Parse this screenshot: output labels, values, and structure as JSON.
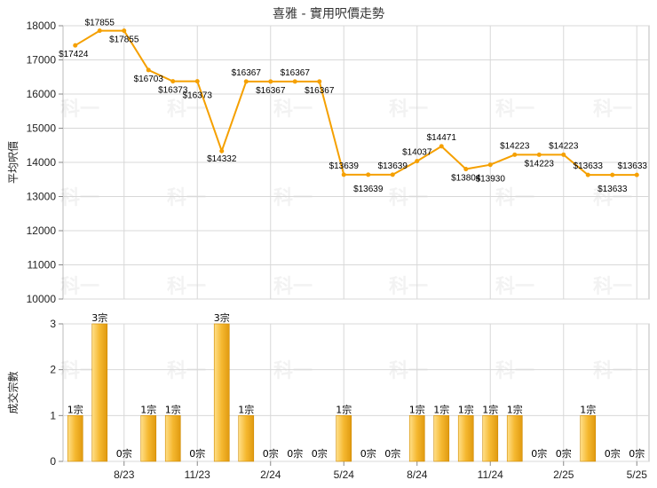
{
  "colors": {
    "line": "#F5A000",
    "bar_light": "#FFE08A",
    "bar_dark": "#E09A10",
    "grid": "#D8D8D8",
    "axis": "#888888"
  },
  "watermark": "科一",
  "chart_data": [
    {
      "type": "line",
      "title": "喜雅 - 實用呎價走勢",
      "ylabel": "平均呎價",
      "ylim": [
        10000,
        18000
      ],
      "yticks": [
        "10000",
        "11000",
        "12000",
        "13000",
        "14000",
        "15000",
        "16000",
        "17000",
        "18000"
      ],
      "xticks": [
        "8/23",
        "11/23",
        "2/24",
        "5/24",
        "8/24",
        "11/24",
        "2/25",
        "5/25"
      ],
      "grid": true,
      "x": [
        "6/23",
        "7/23",
        "8/23",
        "9/23",
        "10/23",
        "11/23",
        "12/23",
        "1/24",
        "2/24",
        "3/24",
        "4/24",
        "5/24",
        "6/24",
        "7/24",
        "8/24",
        "9/24",
        "10/24",
        "11/24",
        "12/24",
        "1/25",
        "2/25",
        "3/25",
        "4/25",
        "5/25"
      ],
      "values": [
        17424,
        17855,
        17855,
        16703,
        16373,
        16373,
        14332,
        16367,
        16367,
        16367,
        16367,
        13639,
        13639,
        13639,
        14037,
        14471,
        13804,
        13930,
        14223,
        14223,
        14223,
        13633,
        13633,
        13633
      ],
      "labels": [
        "$17424",
        "$17855",
        "$17855",
        "$16703",
        "$16373",
        "$16373",
        "$14332",
        "$16367",
        "$16367",
        "$16367",
        "$16367",
        "$13639",
        "$13639",
        "$13639",
        "$14037",
        "$14471",
        "$13804",
        "$13930",
        "$14223",
        "$14223",
        "$14223",
        "$13633",
        "$13633",
        "$13633"
      ]
    },
    {
      "type": "bar",
      "ylabel": "成交宗數",
      "ylim": [
        0,
        3
      ],
      "yticks": [
        "0",
        "1",
        "2",
        "3"
      ],
      "xticks": [
        "8/23",
        "11/23",
        "2/24",
        "5/24",
        "8/24",
        "11/24",
        "2/25",
        "5/25"
      ],
      "grid": true,
      "x": [
        "6/23",
        "7/23",
        "8/23",
        "9/23",
        "10/23",
        "11/23",
        "12/23",
        "1/24",
        "2/24",
        "3/24",
        "4/24",
        "5/24",
        "6/24",
        "7/24",
        "8/24",
        "9/24",
        "10/24",
        "11/24",
        "12/24",
        "1/25",
        "2/25",
        "3/25",
        "4/25",
        "5/25"
      ],
      "values": [
        1,
        3,
        0,
        1,
        1,
        0,
        3,
        1,
        0,
        0,
        0,
        1,
        0,
        0,
        1,
        1,
        1,
        1,
        1,
        0,
        0,
        1,
        0,
        0
      ],
      "labels": [
        "1宗",
        "3宗",
        "0宗",
        "1宗",
        "1宗",
        "0宗",
        "3宗",
        "1宗",
        "0宗",
        "0宗",
        "0宗",
        "1宗",
        "0宗",
        "0宗",
        "1宗",
        "1宗",
        "1宗",
        "1宗",
        "1宗",
        "0宗",
        "0宗",
        "1宗",
        "0宗",
        "0宗"
      ]
    }
  ]
}
